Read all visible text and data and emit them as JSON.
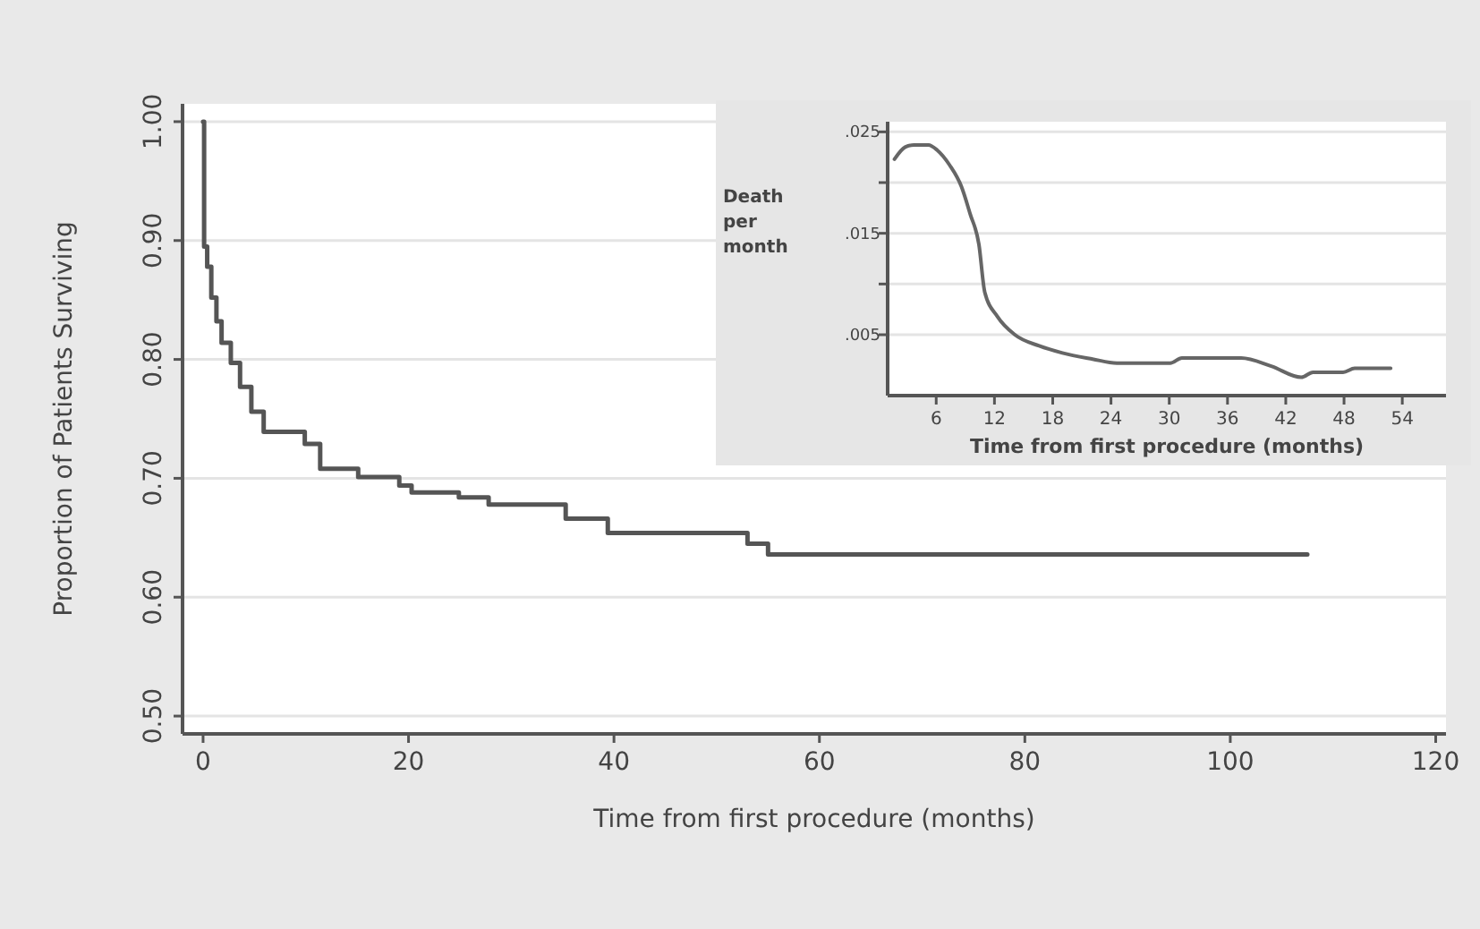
{
  "chart_data": [
    {
      "type": "step",
      "xlabel": "Time from first procedure (months)",
      "ylabel": "Proportion of Patients Surviving",
      "xlim": [
        -2,
        121
      ],
      "ylim": [
        0.485,
        1.015
      ],
      "xticks": [
        0,
        20,
        40,
        60,
        80,
        100,
        120
      ],
      "yticks": [
        {
          "value": 0.5,
          "label": "0.50"
        },
        {
          "value": 0.6,
          "label": "0.60"
        },
        {
          "value": 0.7,
          "label": "0.70"
        },
        {
          "value": 0.8,
          "label": "0.80"
        },
        {
          "value": 0.9,
          "label": "0.90"
        },
        {
          "value": 1,
          "label": "1.00"
        }
      ],
      "grid": "y",
      "series": [
        {
          "color": "#555555",
          "x": [
            0,
            0.1,
            0.4,
            0.8,
            1.3,
            1.8,
            2.7,
            3.6,
            4.7,
            5.9,
            9.9,
            11.4,
            15.1,
            19.1,
            20.3,
            24.9,
            27.8,
            35.3,
            39.4,
            53.0,
            55.0,
            107.5
          ],
          "values": [
            1.0,
            0.895,
            0.878,
            0.852,
            0.832,
            0.814,
            0.797,
            0.777,
            0.756,
            0.739,
            0.729,
            0.708,
            0.701,
            0.694,
            0.688,
            0.684,
            0.678,
            0.666,
            0.654,
            0.645,
            0.636,
            0.636
          ]
        }
      ]
    },
    {
      "type": "line",
      "xlabel": "Time from first procedure (months)",
      "ylabel": "Death per month",
      "xlim": [
        1,
        58.5
      ],
      "ylim": [
        -0.001,
        0.026
      ],
      "xticks": [
        6,
        12,
        18,
        24,
        30,
        36,
        42,
        48,
        54
      ],
      "yticks": [
        {
          "value": 0.005,
          "label": ".005"
        },
        {
          "value": 0.01,
          "label": null
        },
        {
          "value": 0.015,
          "label": ".015"
        },
        {
          "value": 0.02,
          "label": null
        },
        {
          "value": 0.025,
          "label": ".025"
        }
      ],
      "grid": "y",
      "series": [
        {
          "color": "#666666",
          "x": [
            1.7,
            2.8,
            3.7,
            5.2,
            6.1,
            7.4,
            8.6,
            9.5,
            10.4,
            11.0,
            12.3,
            14.1,
            16.6,
            19.0,
            22.1,
            24.6,
            30.1,
            31.3,
            37.4,
            40.5,
            43.6,
            44.8,
            47.9,
            49.1,
            52.8
          ],
          "values": [
            0.0223,
            0.0235,
            0.0237,
            0.0237,
            0.0232,
            0.0217,
            0.0196,
            0.0169,
            0.0139,
            0.0092,
            0.0068,
            0.005,
            0.0039,
            0.0032,
            0.0026,
            0.0022,
            0.0022,
            0.0027,
            0.0027,
            0.0019,
            0.0008,
            0.0013,
            0.0013,
            0.0017,
            0.0017
          ]
        }
      ]
    }
  ]
}
